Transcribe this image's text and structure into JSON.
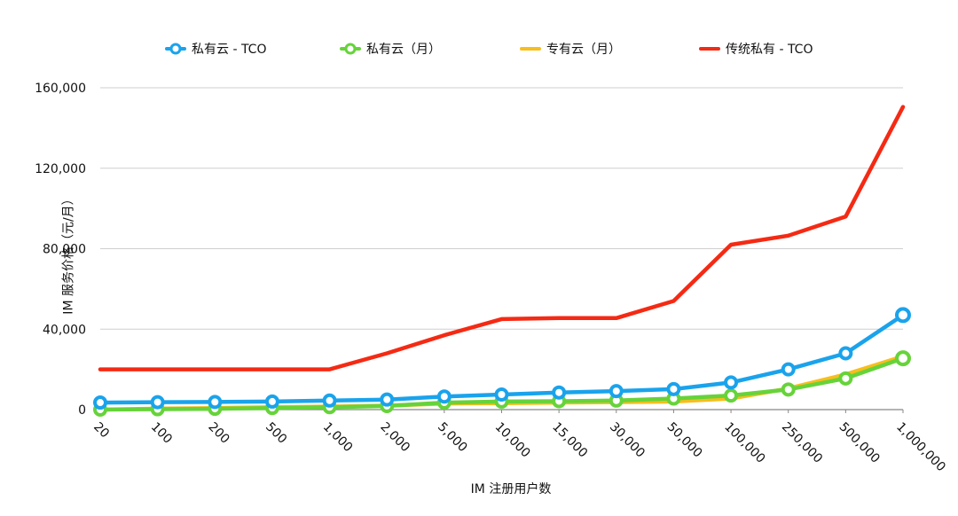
{
  "chart_data": {
    "type": "line",
    "title": "",
    "xlabel": "IM 注册用户数",
    "ylabel": "IM 服务价格（元/月）",
    "categories": [
      "20",
      "100",
      "200",
      "500",
      "1,000",
      "2,000",
      "5,000",
      "10,000",
      "15,000",
      "30,000",
      "50,000",
      "100,000",
      "250,000",
      "500,000",
      "1,000,000"
    ],
    "y_ticks": [
      "0",
      "40,000",
      "80,000",
      "120,000",
      "160,000"
    ],
    "ylim": [
      0,
      160000
    ],
    "grid": true,
    "legend_position": "top",
    "series": [
      {
        "name": "私有云 - TCO",
        "color": "#1aa3ec",
        "markers": true,
        "values": [
          3500,
          3700,
          3800,
          4000,
          4500,
          5000,
          6500,
          7500,
          8500,
          9200,
          10200,
          13500,
          20000,
          28000,
          47000
        ]
      },
      {
        "name": "私有云（月）",
        "color": "#66d33a",
        "markers": true,
        "values": [
          0,
          200,
          400,
          800,
          1200,
          1800,
          3500,
          4000,
          4200,
          4500,
          5500,
          7000,
          10000,
          15500,
          25500
        ]
      },
      {
        "name": "专有云（月）",
        "color": "#f8be1c",
        "markers": false,
        "values": [
          0,
          500,
          800,
          1200,
          1500,
          2000,
          3000,
          3200,
          3500,
          3700,
          4000,
          5500,
          10500,
          17500,
          26500
        ]
      },
      {
        "name": "传统私有 - TCO",
        "color": "#f52a14",
        "markers": false,
        "values": [
          20000,
          20000,
          20000,
          20000,
          20000,
          28000,
          37000,
          45000,
          45500,
          45500,
          54000,
          82000,
          86500,
          96000,
          150500
        ]
      }
    ]
  }
}
